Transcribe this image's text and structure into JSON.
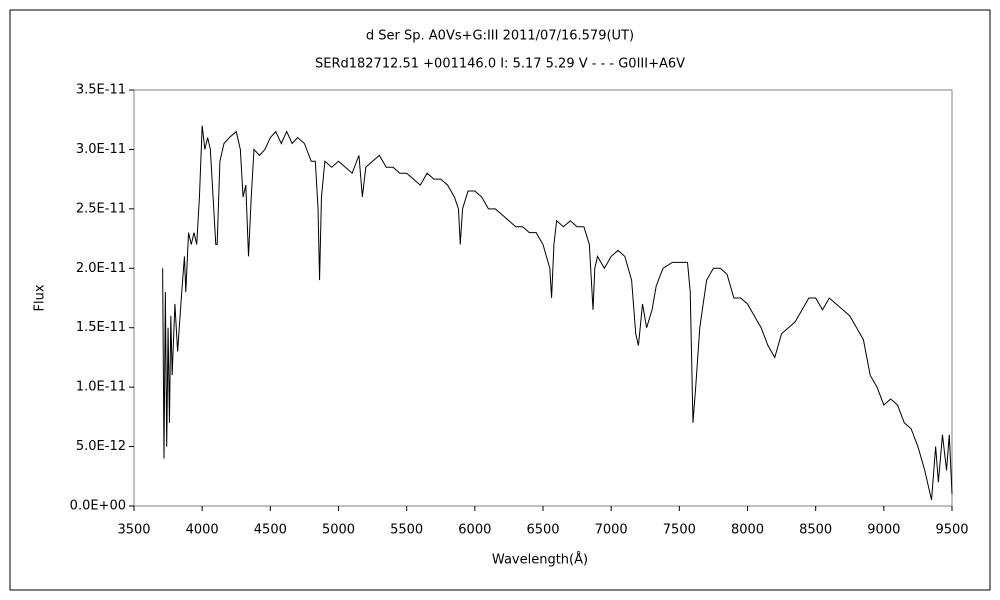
{
  "chart_data": {
    "type": "line",
    "title": "d Ser    Sp. A0Vs+G:III    2011/07/16.579(UT)",
    "subtitle": "SERd182712.51 +001146.0 I: 5.17 5.29 V - - - G0III+A6V",
    "x_label": "Wavelength(Å)",
    "y_label": "Flux",
    "x": [
      3710,
      3720,
      3730,
      3740,
      3750,
      3760,
      3770,
      3780,
      3800,
      3820,
      3850,
      3870,
      3880,
      3900,
      3920,
      3940,
      3960,
      3980,
      4000,
      4020,
      4040,
      4060,
      4080,
      4100,
      4110,
      4130,
      4160,
      4200,
      4250,
      4280,
      4300,
      4320,
      4340,
      4360,
      4380,
      4420,
      4460,
      4500,
      4540,
      4580,
      4620,
      4660,
      4700,
      4750,
      4800,
      4830,
      4850,
      4861,
      4875,
      4900,
      4950,
      5000,
      5050,
      5100,
      5150,
      5175,
      5200,
      5250,
      5300,
      5350,
      5400,
      5450,
      5500,
      5550,
      5600,
      5650,
      5700,
      5750,
      5800,
      5850,
      5880,
      5893,
      5910,
      5950,
      6000,
      6050,
      6100,
      6150,
      6200,
      6250,
      6300,
      6350,
      6400,
      6450,
      6500,
      6550,
      6563,
      6580,
      6600,
      6650,
      6700,
      6750,
      6800,
      6840,
      6867,
      6880,
      6900,
      6950,
      7000,
      7050,
      7100,
      7150,
      7180,
      7200,
      7230,
      7260,
      7300,
      7330,
      7380,
      7450,
      7500,
      7560,
      7580,
      7600,
      7620,
      7650,
      7700,
      7750,
      7800,
      7850,
      7900,
      7950,
      8000,
      8050,
      8100,
      8150,
      8200,
      8250,
      8300,
      8350,
      8400,
      8450,
      8500,
      8550,
      8600,
      8650,
      8700,
      8750,
      8800,
      8850,
      8900,
      8950,
      9000,
      9050,
      9100,
      9150,
      9200,
      9250,
      9300,
      9350,
      9380,
      9400,
      9430,
      9460,
      9480,
      9500
    ],
    "series": [
      {
        "color": "#000000",
        "values": [
          2e-11,
          4e-12,
          1.8e-11,
          5e-12,
          1.5e-11,
          7e-12,
          1.6e-11,
          1.1e-11,
          1.7e-11,
          1.3e-11,
          1.8e-11,
          2.1e-11,
          1.8e-11,
          2.3e-11,
          2.2e-11,
          2.3e-11,
          2.2e-11,
          2.6e-11,
          3.2e-11,
          3e-11,
          3.1e-11,
          3e-11,
          2.6e-11,
          2.2e-11,
          2.2e-11,
          2.9e-11,
          3.05e-11,
          3.1e-11,
          3.15e-11,
          3e-11,
          2.6e-11,
          2.7e-11,
          2.1e-11,
          2.6e-11,
          3e-11,
          2.95e-11,
          3e-11,
          3.1e-11,
          3.15e-11,
          3.05e-11,
          3.15e-11,
          3.05e-11,
          3.1e-11,
          3.05e-11,
          2.9e-11,
          2.9e-11,
          2.5e-11,
          1.9e-11,
          2.6e-11,
          2.9e-11,
          2.85e-11,
          2.9e-11,
          2.85e-11,
          2.8e-11,
          2.95e-11,
          2.6e-11,
          2.85e-11,
          2.9e-11,
          2.95e-11,
          2.85e-11,
          2.85e-11,
          2.8e-11,
          2.8e-11,
          2.75e-11,
          2.7e-11,
          2.8e-11,
          2.75e-11,
          2.75e-11,
          2.7e-11,
          2.6e-11,
          2.5e-11,
          2.2e-11,
          2.5e-11,
          2.65e-11,
          2.65e-11,
          2.6e-11,
          2.5e-11,
          2.5e-11,
          2.45e-11,
          2.4e-11,
          2.35e-11,
          2.35e-11,
          2.3e-11,
          2.3e-11,
          2.2e-11,
          2e-11,
          1.75e-11,
          2.2e-11,
          2.4e-11,
          2.35e-11,
          2.4e-11,
          2.35e-11,
          2.35e-11,
          2.2e-11,
          1.65e-11,
          2e-11,
          2.1e-11,
          2e-11,
          2.1e-11,
          2.15e-11,
          2.1e-11,
          1.9e-11,
          1.45e-11,
          1.35e-11,
          1.7e-11,
          1.5e-11,
          1.65e-11,
          1.85e-11,
          2e-11,
          2.05e-11,
          2.05e-11,
          2.05e-11,
          1.8e-11,
          7e-12,
          1e-11,
          1.5e-11,
          1.9e-11,
          2e-11,
          2e-11,
          1.95e-11,
          1.75e-11,
          1.75e-11,
          1.7e-11,
          1.6e-11,
          1.5e-11,
          1.35e-11,
          1.25e-11,
          1.45e-11,
          1.5e-11,
          1.55e-11,
          1.65e-11,
          1.75e-11,
          1.75e-11,
          1.65e-11,
          1.75e-11,
          1.7e-11,
          1.65e-11,
          1.6e-11,
          1.5e-11,
          1.4e-11,
          1.1e-11,
          1e-11,
          8.5e-12,
          9e-12,
          8.5e-12,
          7e-12,
          6.5e-12,
          5e-12,
          3e-12,
          5e-13,
          5e-12,
          2e-12,
          6e-12,
          3e-12,
          6e-12,
          1e-12
        ]
      }
    ],
    "xlim": [
      3500,
      9500
    ],
    "xticks": [
      3500,
      4000,
      4500,
      5000,
      5500,
      6000,
      6500,
      7000,
      7500,
      8000,
      8500,
      9000,
      9500
    ],
    "ylim": [
      0,
      3.5e-11
    ],
    "yticks": [
      {
        "value": 0,
        "label": "0.0E+00"
      },
      {
        "value": 5e-12,
        "label": "5.0E-12"
      },
      {
        "value": 1e-11,
        "label": "1.0E-11"
      },
      {
        "value": 1.5e-11,
        "label": "1.5E-11"
      },
      {
        "value": 2e-11,
        "label": "2.0E-11"
      },
      {
        "value": 2.5e-11,
        "label": "2.5E-11"
      },
      {
        "value": 3e-11,
        "label": "3.0E-11"
      },
      {
        "value": 3.5e-11,
        "label": "3.5E-11"
      }
    ],
    "grid": false
  }
}
